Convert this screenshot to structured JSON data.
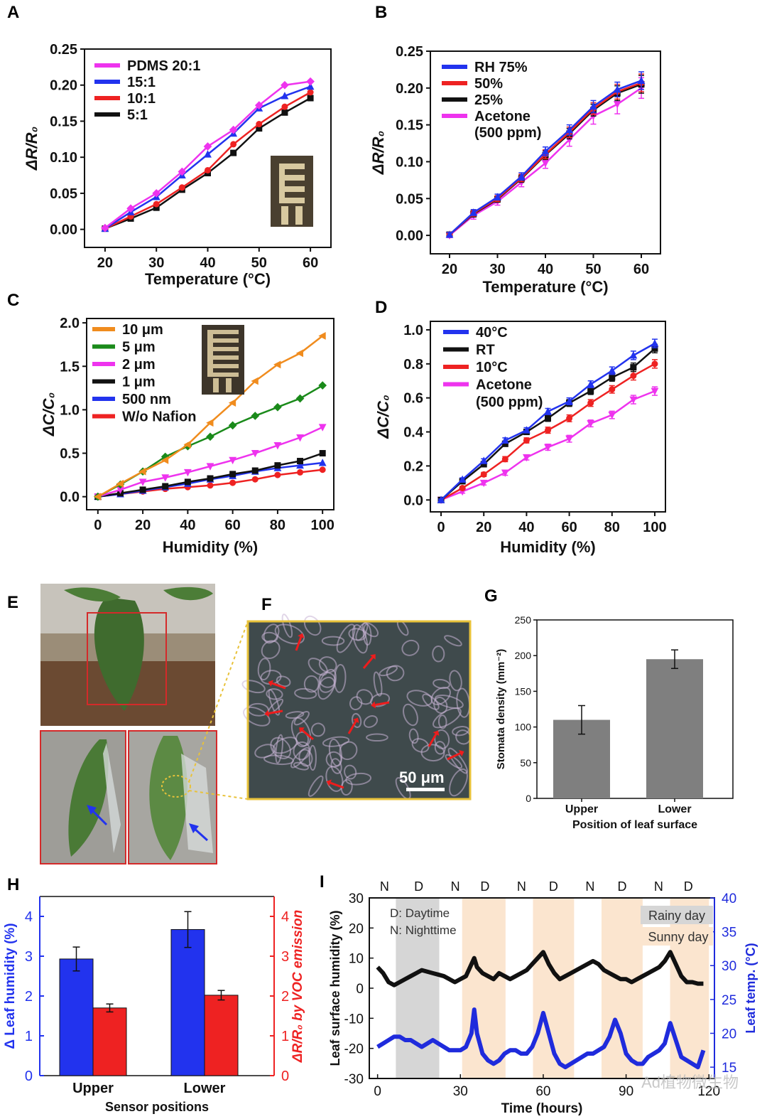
{
  "figure": {
    "panel_labels": {
      "A": "A",
      "B": "B",
      "C": "C",
      "D": "D",
      "E": "E",
      "F": "F",
      "G": "G",
      "H": "H",
      "I": "I"
    },
    "colors": {
      "magenta": "#ee33ee",
      "blue": "#2233ee",
      "red": "#ee2222",
      "black": "#111111",
      "orange": "#f08c1e",
      "green": "#1a8a1a",
      "gray_bar": "#7f7f7f",
      "leaf_temp": "#1f2bdc",
      "rainy": "#d6d6d6",
      "sunny": "#fbe5cf"
    }
  },
  "photos": {
    "E": {
      "description_icons": [
        "tomato-plant-photo",
        "leaf-upper-sensor-photo",
        "leaf-lower-sensor-photo"
      ]
    },
    "F": {
      "scale_bar": "50 μm"
    }
  },
  "chart_data": [
    {
      "panel": "A",
      "type": "line",
      "xlabel": "Temperature (°C)",
      "ylabel": "ΔR/R₀",
      "xlim": [
        16,
        64
      ],
      "ylim": [
        -0.025,
        0.25
      ],
      "xticks": [
        20,
        30,
        40,
        50,
        60
      ],
      "yticks": [
        0.0,
        0.05,
        0.1,
        0.15,
        0.2,
        0.25
      ],
      "ytick_labels": [
        "0.00",
        "0.05",
        "0.10",
        "0.15",
        "0.20",
        "0.25"
      ],
      "legend_position": "top-left",
      "x": [
        20,
        25,
        30,
        35,
        40,
        45,
        50,
        55,
        60
      ],
      "series": [
        {
          "name": "PDMS 20:1",
          "color": "#ee33ee",
          "marker": "diamond",
          "values": [
            0.002,
            0.029,
            0.05,
            0.08,
            0.115,
            0.138,
            0.172,
            0.2,
            0.205
          ]
        },
        {
          "name": "15:1",
          "color": "#2233ee",
          "marker": "triangle",
          "values": [
            0.001,
            0.024,
            0.045,
            0.075,
            0.104,
            0.133,
            0.168,
            0.185,
            0.198
          ]
        },
        {
          "name": "10:1",
          "color": "#ee2222",
          "marker": "circle",
          "values": [
            0.001,
            0.018,
            0.035,
            0.058,
            0.082,
            0.118,
            0.146,
            0.17,
            0.19
          ]
        },
        {
          "name": "5:1",
          "color": "#111111",
          "marker": "square",
          "values": [
            0.001,
            0.015,
            0.03,
            0.055,
            0.078,
            0.106,
            0.14,
            0.162,
            0.182
          ]
        }
      ]
    },
    {
      "panel": "B",
      "type": "line",
      "xlabel": "Temperature (°C)",
      "ylabel": "ΔR/R₀",
      "xlim": [
        16,
        64
      ],
      "ylim": [
        -0.025,
        0.25
      ],
      "xticks": [
        20,
        30,
        40,
        50,
        60
      ],
      "yticks": [
        0.0,
        0.05,
        0.1,
        0.15,
        0.2,
        0.25
      ],
      "ytick_labels": [
        "0.00",
        "0.05",
        "0.10",
        "0.15",
        "0.20",
        "0.25"
      ],
      "legend_position": "top-left",
      "x": [
        20,
        25,
        30,
        35,
        40,
        45,
        50,
        55,
        60
      ],
      "series": [
        {
          "name": "RH 75%",
          "color": "#2233ee",
          "marker": "triangle",
          "values": [
            0.001,
            0.031,
            0.052,
            0.08,
            0.114,
            0.143,
            0.175,
            0.198,
            0.21
          ],
          "error": [
            0.003,
            0.004,
            0.004,
            0.005,
            0.006,
            0.007,
            0.008,
            0.01,
            0.012
          ]
        },
        {
          "name": "50%",
          "color": "#ee2222",
          "marker": "circle",
          "values": [
            0.001,
            0.03,
            0.05,
            0.078,
            0.11,
            0.14,
            0.172,
            0.195,
            0.207
          ],
          "error": [
            0.003,
            0.004,
            0.004,
            0.005,
            0.006,
            0.007,
            0.008,
            0.01,
            0.012
          ]
        },
        {
          "name": "25%",
          "color": "#111111",
          "marker": "square",
          "values": [
            0.001,
            0.029,
            0.049,
            0.077,
            0.109,
            0.138,
            0.17,
            0.193,
            0.205
          ],
          "error": [
            0.003,
            0.004,
            0.004,
            0.005,
            0.006,
            0.007,
            0.008,
            0.01,
            0.012
          ]
        },
        {
          "name": "Acetone\n(500 ppm)",
          "color": "#ee33ee",
          "marker": "triangle-down",
          "values": [
            0.0,
            0.027,
            0.046,
            0.072,
            0.098,
            0.13,
            0.162,
            0.178,
            0.2
          ],
          "error": [
            0.003,
            0.005,
            0.005,
            0.006,
            0.007,
            0.009,
            0.011,
            0.013,
            0.014
          ]
        }
      ]
    },
    {
      "panel": "C",
      "type": "line",
      "xlabel": "Humidity (%)",
      "ylabel": "ΔC/C₀",
      "xlim": [
        -5,
        105
      ],
      "ylim": [
        -0.15,
        2.05
      ],
      "xticks": [
        0,
        20,
        40,
        60,
        80,
        100
      ],
      "yticks": [
        0.0,
        0.5,
        1.0,
        1.5,
        2.0
      ],
      "ytick_labels": [
        "0.0",
        "0.5",
        "1.0",
        "1.5",
        "2.0"
      ],
      "legend_position": "top-left",
      "x": [
        0,
        10,
        20,
        30,
        40,
        50,
        60,
        70,
        80,
        90,
        100
      ],
      "series": [
        {
          "name": "10 μm",
          "color": "#f08c1e",
          "marker": "triangle-left",
          "values": [
            0.0,
            0.15,
            0.29,
            0.42,
            0.6,
            0.85,
            1.08,
            1.33,
            1.52,
            1.65,
            1.85
          ]
        },
        {
          "name": "5 μm",
          "color": "#1a8a1a",
          "marker": "diamond",
          "values": [
            0.0,
            0.14,
            0.29,
            0.46,
            0.58,
            0.69,
            0.82,
            0.93,
            1.03,
            1.13,
            1.28
          ]
        },
        {
          "name": "2 μm",
          "color": "#ee33ee",
          "marker": "triangle-down",
          "values": [
            0.0,
            0.08,
            0.17,
            0.22,
            0.28,
            0.35,
            0.42,
            0.5,
            0.59,
            0.68,
            0.8
          ]
        },
        {
          "name": "1 μm",
          "color": "#111111",
          "marker": "square",
          "values": [
            0.0,
            0.04,
            0.08,
            0.12,
            0.17,
            0.21,
            0.26,
            0.3,
            0.36,
            0.41,
            0.5
          ]
        },
        {
          "name": "500 nm",
          "color": "#2233ee",
          "marker": "triangle",
          "values": [
            0.0,
            0.03,
            0.07,
            0.11,
            0.15,
            0.2,
            0.24,
            0.29,
            0.33,
            0.36,
            0.39
          ]
        },
        {
          "name": "W/o Nafion",
          "color": "#ee2222",
          "marker": "circle",
          "values": [
            0.0,
            0.03,
            0.06,
            0.09,
            0.11,
            0.13,
            0.16,
            0.2,
            0.25,
            0.28,
            0.31
          ]
        }
      ]
    },
    {
      "panel": "D",
      "type": "line",
      "xlabel": "Humidity (%)",
      "ylabel": "ΔC/C₀",
      "xlim": [
        -5,
        105
      ],
      "ylim": [
        -0.07,
        1.05
      ],
      "xticks": [
        0,
        20,
        40,
        60,
        80,
        100
      ],
      "yticks": [
        0.0,
        0.2,
        0.4,
        0.6,
        0.8,
        1.0
      ],
      "ytick_labels": [
        "0.0",
        "0.2",
        "0.4",
        "0.6",
        "0.8",
        "1.0"
      ],
      "legend_position": "top-left",
      "x": [
        0,
        10,
        20,
        30,
        40,
        50,
        60,
        70,
        80,
        90,
        100
      ],
      "series": [
        {
          "name": "40°C",
          "color": "#2233ee",
          "marker": "triangle",
          "values": [
            0.0,
            0.12,
            0.23,
            0.35,
            0.41,
            0.52,
            0.58,
            0.68,
            0.76,
            0.85,
            0.92
          ],
          "error": [
            0.005,
            0.01,
            0.012,
            0.015,
            0.015,
            0.018,
            0.02,
            0.02,
            0.022,
            0.025,
            0.025
          ]
        },
        {
          "name": "RT",
          "color": "#111111",
          "marker": "square",
          "values": [
            0.0,
            0.11,
            0.21,
            0.33,
            0.4,
            0.48,
            0.57,
            0.64,
            0.72,
            0.78,
            0.89
          ],
          "error": [
            0.005,
            0.01,
            0.012,
            0.015,
            0.015,
            0.018,
            0.02,
            0.02,
            0.022,
            0.025,
            0.025
          ]
        },
        {
          "name": "10°C",
          "color": "#ee2222",
          "marker": "circle",
          "values": [
            0.0,
            0.07,
            0.15,
            0.24,
            0.35,
            0.41,
            0.48,
            0.57,
            0.65,
            0.73,
            0.8
          ],
          "error": [
            0.005,
            0.01,
            0.012,
            0.015,
            0.015,
            0.018,
            0.02,
            0.02,
            0.022,
            0.025,
            0.025
          ]
        },
        {
          "name": "Acetone\n(500 ppm)",
          "color": "#ee33ee",
          "marker": "triangle-down",
          "values": [
            0.0,
            0.05,
            0.1,
            0.16,
            0.25,
            0.31,
            0.36,
            0.45,
            0.5,
            0.59,
            0.64
          ],
          "error": [
            0.005,
            0.01,
            0.012,
            0.015,
            0.015,
            0.018,
            0.02,
            0.02,
            0.022,
            0.025,
            0.025
          ]
        }
      ]
    },
    {
      "panel": "G",
      "type": "bar",
      "xlabel": "Position of leaf surface",
      "ylabel": "Stomata density (mm⁻²)",
      "categories": [
        "Upper",
        "Lower"
      ],
      "values": [
        110,
        195
      ],
      "errors": [
        20,
        13
      ],
      "ylim": [
        0,
        250
      ],
      "yticks": [
        0,
        50,
        100,
        150,
        200,
        250
      ],
      "ytick_labels": [
        "0",
        "50",
        "100",
        "150",
        "200",
        "250"
      ]
    },
    {
      "panel": "H",
      "type": "bar",
      "xlabel": "Sensor positions",
      "categories": [
        "Upper",
        "Lower"
      ],
      "ylabel_left": "Δ Leaf humidity (%)",
      "ylabel_right": "ΔR/R₀ by VOC emission",
      "ylim": [
        0,
        4.5
      ],
      "yticks": [
        0,
        1,
        2,
        3,
        4
      ],
      "ytick_labels": [
        "0",
        "1",
        "2",
        "3",
        "4"
      ],
      "series": [
        {
          "name": "Δ Leaf humidity (%)",
          "axis": "left",
          "color": "#2233ee",
          "values": [
            2.93,
            3.67
          ],
          "errors": [
            0.3,
            0.45
          ]
        },
        {
          "name": "ΔR/R₀ by VOC emission",
          "axis": "right",
          "color": "#ee2222",
          "values": [
            1.7,
            2.02
          ],
          "errors": [
            0.1,
            0.12
          ]
        }
      ]
    },
    {
      "panel": "I",
      "type": "line",
      "xlabel": "Time (hours)",
      "ylabel_left": "Leaf surface humidity (%)",
      "ylabel_right": "Leaf temp. (°C)",
      "xlim": [
        -3,
        122
      ],
      "ylim_left": [
        -30,
        30
      ],
      "ylim_right": [
        13.33,
        40
      ],
      "xticks": [
        0,
        30,
        60,
        90,
        120
      ],
      "yticks_left": [
        -30,
        -20,
        -10,
        0,
        10,
        20,
        30
      ],
      "yticks_right": [
        15,
        20,
        25,
        30,
        35,
        40
      ],
      "day_night_labels": [
        "N",
        "D",
        "N",
        "D",
        "N",
        "D",
        "N",
        "D",
        "N",
        "D"
      ],
      "day_night_x": [
        3,
        18,
        34,
        47,
        63,
        77,
        93,
        107,
        123,
        136
      ],
      "bands": [
        {
          "kind": "rainy",
          "x0": 8,
          "x1": 27
        },
        {
          "kind": "sunny",
          "x0": 37,
          "x1": 56
        },
        {
          "kind": "sunny",
          "x0": 68,
          "x1": 86
        },
        {
          "kind": "sunny",
          "x0": 98,
          "x1": 116
        },
        {
          "kind": "sunny",
          "x0": 128,
          "x1": 145
        }
      ],
      "annotations": {
        "daytime": "D: Daytime",
        "nighttime": "N: Nighttime",
        "rainy": "Rainy day",
        "sunny": "Sunny day"
      },
      "watermark": "Ad植物微生物",
      "series": [
        {
          "name": "Leaf surface humidity",
          "axis": "left",
          "color": "#111111",
          "x": [
            0,
            2,
            4,
            6,
            8,
            10,
            12,
            14,
            16,
            18,
            20,
            22,
            24,
            26,
            28,
            30,
            32,
            34,
            35,
            36,
            38,
            40,
            42,
            44,
            46,
            48,
            50,
            52,
            54,
            56,
            58,
            60,
            62,
            64,
            66,
            68,
            70,
            72,
            74,
            76,
            78,
            80,
            82,
            84,
            86,
            88,
            90,
            92,
            94,
            96,
            98,
            100,
            102,
            104,
            106,
            108,
            110,
            112,
            114,
            116,
            118
          ],
          "values": [
            7,
            5,
            2,
            1,
            2,
            3,
            4,
            5,
            6,
            5.5,
            5,
            4.5,
            4,
            3,
            2,
            3,
            4,
            8,
            10,
            7,
            5,
            4,
            3,
            5,
            4,
            3,
            4,
            5,
            6,
            8,
            10,
            12,
            8,
            5,
            3,
            4,
            5,
            6,
            7,
            8,
            9,
            8,
            6,
            5,
            4,
            3,
            3,
            2,
            3,
            4,
            5,
            6,
            7,
            9,
            12,
            8,
            4,
            2,
            2,
            1.5,
            1.5
          ]
        },
        {
          "name": "Leaf temp.",
          "axis": "right",
          "color": "#1f2bdc",
          "x": [
            0,
            2,
            4,
            6,
            8,
            10,
            12,
            14,
            16,
            18,
            20,
            22,
            24,
            26,
            28,
            30,
            32,
            34,
            35,
            36,
            38,
            40,
            42,
            44,
            46,
            48,
            50,
            52,
            54,
            56,
            58,
            60,
            62,
            64,
            66,
            68,
            70,
            72,
            74,
            76,
            78,
            80,
            82,
            84,
            86,
            88,
            90,
            92,
            94,
            96,
            98,
            100,
            102,
            104,
            106,
            108,
            110,
            112,
            114,
            116,
            118
          ],
          "values": [
            18,
            18.5,
            19,
            19.5,
            19.5,
            19,
            19,
            18.5,
            18,
            18.5,
            19,
            18.5,
            18,
            17.5,
            17.5,
            17.5,
            18,
            20,
            23.5,
            20,
            17,
            16,
            15.5,
            16,
            17,
            17.5,
            17.5,
            17,
            17,
            18,
            20,
            23,
            20,
            17,
            15.5,
            15,
            15.5,
            16,
            16.5,
            17,
            17,
            17.5,
            18,
            19.5,
            22,
            20,
            17,
            16,
            15.5,
            15.5,
            16.5,
            17,
            17.5,
            18.5,
            21.5,
            19,
            16.5,
            16,
            15.5,
            15,
            17.5
          ]
        }
      ]
    }
  ]
}
